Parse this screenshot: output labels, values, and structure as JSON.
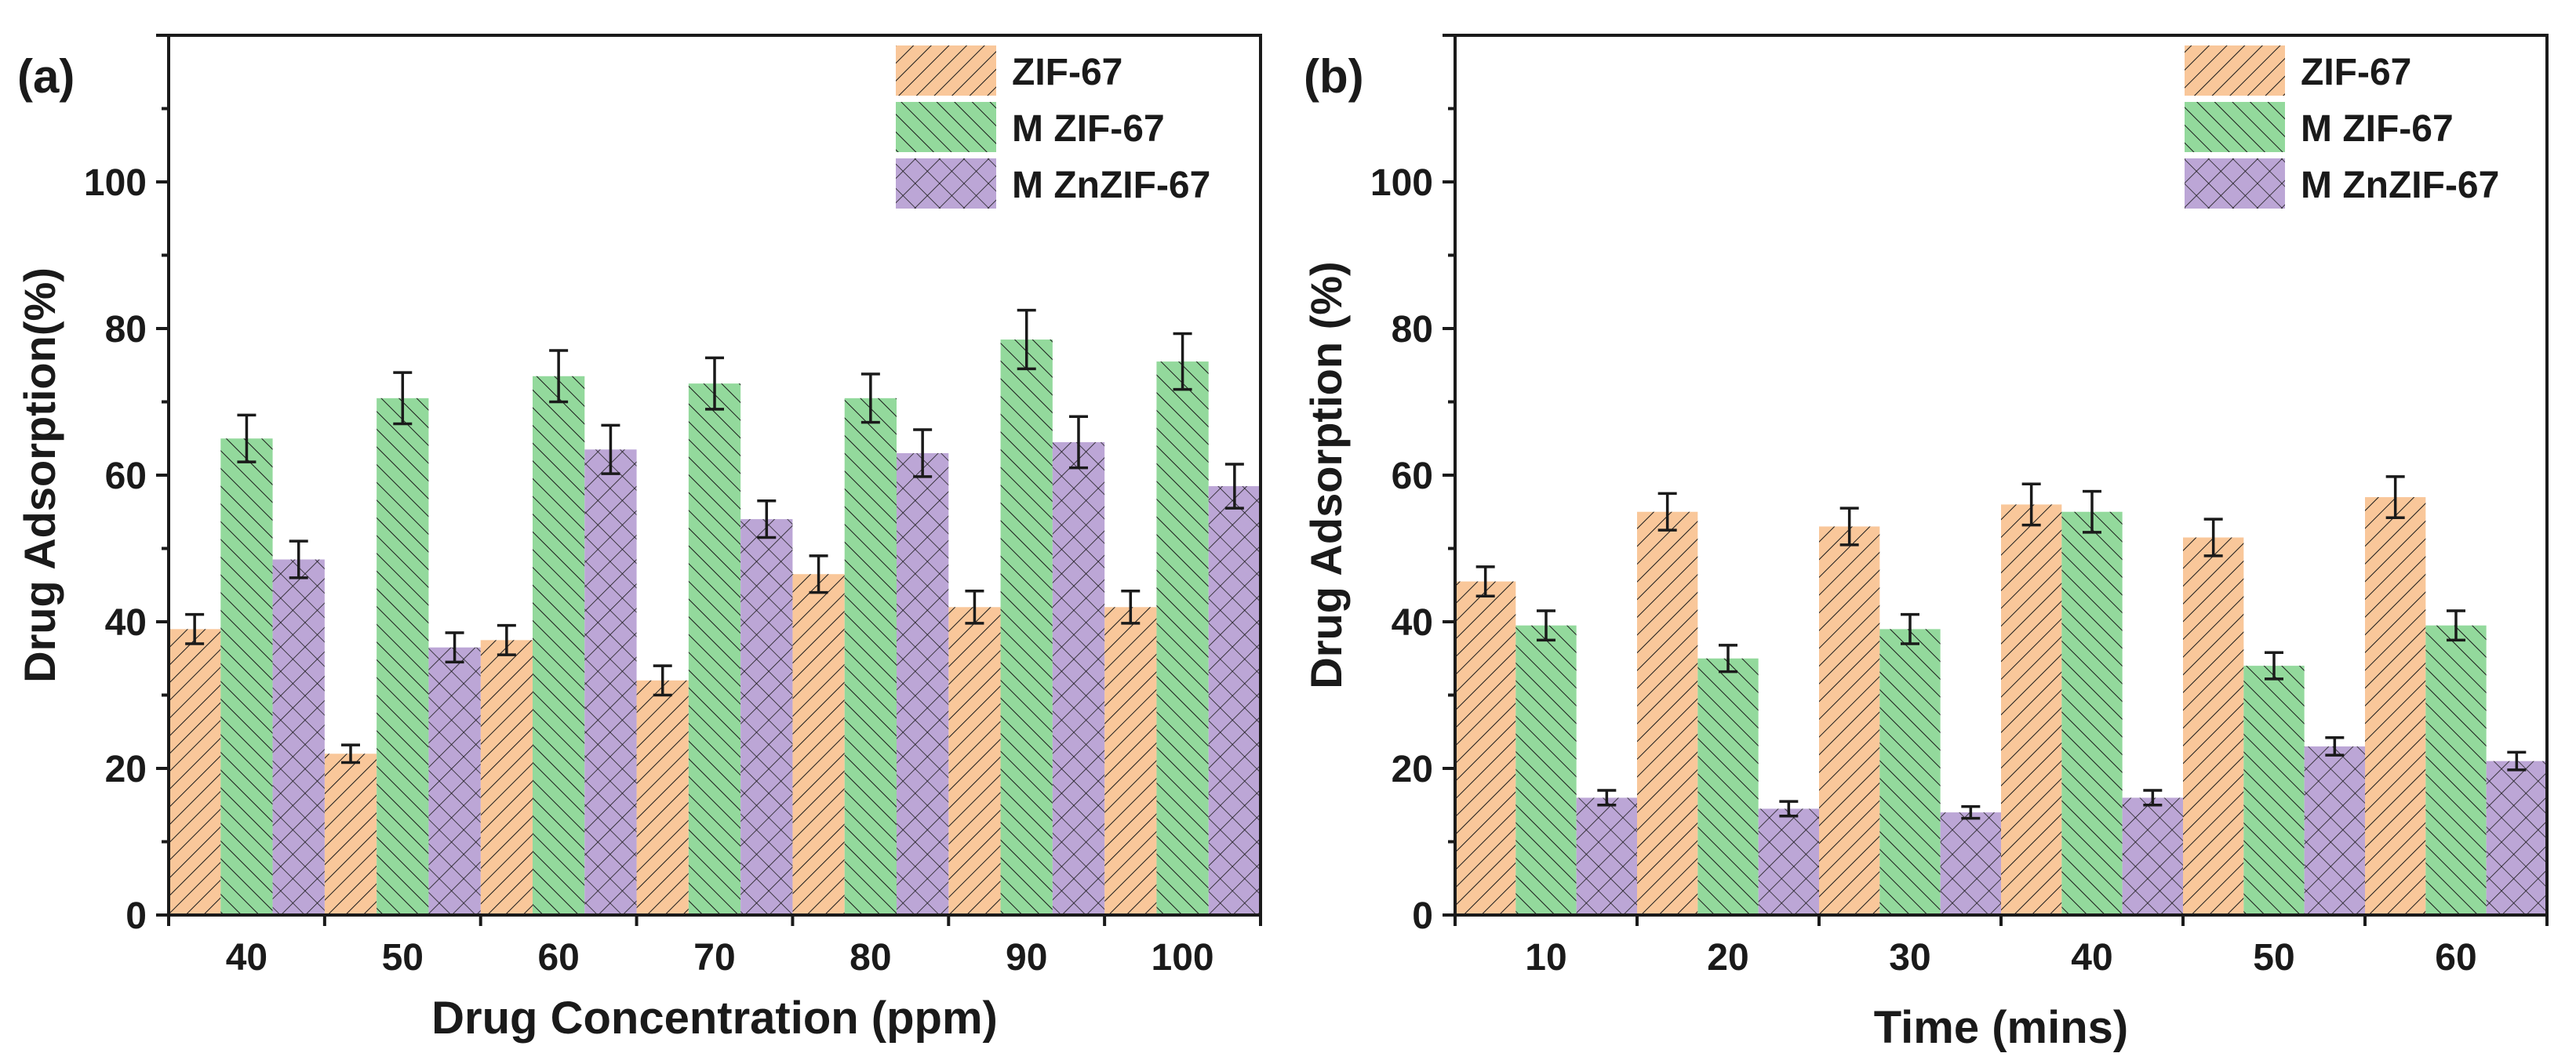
{
  "colors": {
    "zif67": "#f9c79a",
    "m_zif67": "#93d99c",
    "m_znzif67": "#bca6d6",
    "hatch": "#1a1a1a",
    "axis": "#1a1a1a"
  },
  "chart_data": [
    {
      "type": "bar",
      "panel_label": "(a)",
      "xlabel": "Drug Concentration (ppm)",
      "ylabel": "Drug Adsorption(%)",
      "ylim": [
        0,
        120
      ],
      "yticks": [
        0,
        20,
        40,
        60,
        80,
        100
      ],
      "ytick_labels": [
        "0",
        "20",
        "40",
        "60",
        "80",
        "100"
      ],
      "categories": [
        "40",
        "50",
        "60",
        "70",
        "80",
        "90",
        "100"
      ],
      "legend_position": "top-right",
      "series": [
        {
          "name": "ZIF-67",
          "pattern": "diag-right",
          "values": [
            39,
            22,
            37.5,
            32,
            46.5,
            42,
            42
          ],
          "errors": [
            2,
            1.2,
            2,
            2,
            2.5,
            2.2,
            2.2
          ]
        },
        {
          "name": "M ZIF-67",
          "pattern": "diag-left",
          "values": [
            65,
            70.5,
            73.5,
            72.5,
            70.5,
            78.5,
            75.5
          ],
          "errors": [
            3.2,
            3.5,
            3.5,
            3.5,
            3.3,
            4,
            3.8
          ]
        },
        {
          "name": "M ZnZIF-67",
          "pattern": "cross",
          "values": [
            48.5,
            36.5,
            63.5,
            54,
            63,
            64.5,
            58.5
          ],
          "errors": [
            2.5,
            2,
            3.3,
            2.5,
            3.2,
            3.5,
            3
          ]
        }
      ]
    },
    {
      "type": "bar",
      "panel_label": "(b)",
      "xlabel": "Time (mins)",
      "ylabel": "Drug Adsorption (%)",
      "ylim": [
        0,
        120
      ],
      "yticks": [
        0,
        20,
        40,
        60,
        80,
        100
      ],
      "ytick_labels": [
        "0",
        "20",
        "40",
        "60",
        "80",
        "100"
      ],
      "categories": [
        "10",
        "20",
        "30",
        "40",
        "50",
        "60"
      ],
      "legend_position": "top-right",
      "series": [
        {
          "name": "ZIF-67",
          "pattern": "diag-right",
          "values": [
            45.5,
            55,
            53,
            56,
            51.5,
            57
          ],
          "errors": [
            2,
            2.5,
            2.5,
            2.8,
            2.5,
            2.8
          ]
        },
        {
          "name": "M ZIF-67",
          "pattern": "diag-left",
          "values": [
            39.5,
            35,
            39,
            55,
            34,
            39.5
          ],
          "errors": [
            2,
            1.8,
            2,
            2.8,
            1.8,
            2
          ]
        },
        {
          "name": "M ZnZIF-67",
          "pattern": "cross",
          "values": [
            16,
            14.5,
            14,
            16,
            23,
            21
          ],
          "errors": [
            1,
            1,
            0.8,
            1,
            1.2,
            1.2
          ]
        }
      ]
    }
  ]
}
